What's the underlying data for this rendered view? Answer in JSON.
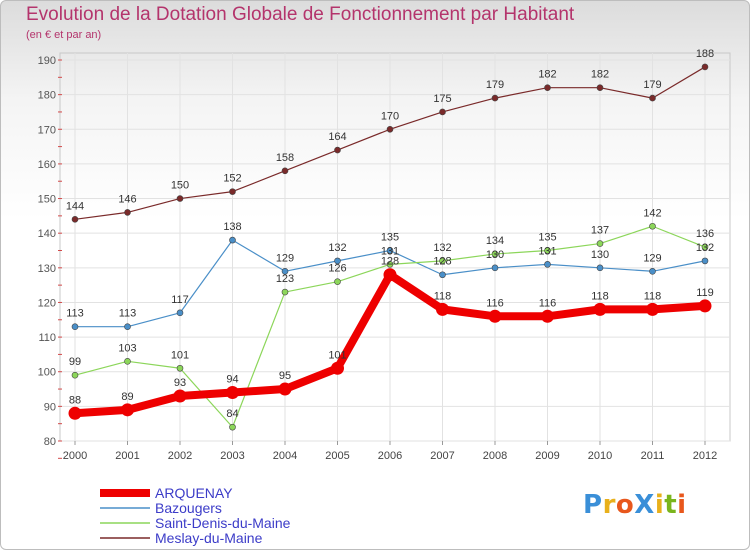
{
  "title": "Evolution de la Dotation Globale de Fonctionnement par Habitant",
  "subtitle": "(en € et par an)",
  "logo": {
    "text": "ProXiti",
    "letters": [
      "P",
      "r",
      "o",
      "X",
      "i",
      "t",
      "i"
    ],
    "colors": [
      "#3a8fd8",
      "#e8b01c",
      "#e8571c",
      "#3a8fd8",
      "#e8b01c",
      "#7ab51d",
      "#e8571c"
    ]
  },
  "chart_data": {
    "type": "line",
    "x": [
      "2000",
      "2001",
      "2002",
      "2003",
      "2004",
      "2005",
      "2006",
      "2007",
      "2008",
      "2009",
      "2010",
      "2011",
      "2012"
    ],
    "ylim": [
      80,
      190
    ],
    "yticks": [
      80,
      90,
      100,
      110,
      120,
      130,
      140,
      150,
      160,
      170,
      180,
      190
    ],
    "grid": true,
    "legend_position": "bottom-left",
    "series": [
      {
        "name": "Meslay-du-Maine",
        "color": "#7a2a2a",
        "width": 1.2,
        "marker": 3,
        "values": [
          144,
          146,
          150,
          152,
          158,
          164,
          170,
          175,
          179,
          182,
          182,
          179,
          188
        ],
        "labels": [
          "144",
          "146",
          "150",
          "152",
          "158",
          "164",
          "170",
          "175",
          "179",
          "182",
          "182",
          "179",
          "188"
        ]
      },
      {
        "name": "Bazougers",
        "color": "#4a8fc8",
        "width": 1.2,
        "marker": 3,
        "values": [
          113,
          113,
          117,
          138,
          129,
          132,
          135,
          128,
          130,
          131,
          130,
          129,
          132
        ],
        "labels": [
          "113",
          "113",
          "117",
          "138",
          "129",
          "132",
          "135",
          "128",
          "130",
          "131",
          "130",
          "129",
          "132"
        ]
      },
      {
        "name": "Saint-Denis-du-Maine",
        "color": "#8cd65a",
        "width": 1.2,
        "marker": 3,
        "values": [
          99,
          103,
          101,
          84,
          123,
          126,
          131,
          132,
          134,
          135,
          137,
          142,
          136
        ],
        "labels": [
          "99",
          "103",
          "101",
          "84",
          "123",
          "126",
          "131",
          "132",
          "134",
          "135",
          "137",
          "142",
          "136"
        ]
      },
      {
        "name": "ARQUENAY",
        "color": "#ee0000",
        "width": 8,
        "marker": 6.5,
        "values": [
          88,
          89,
          93,
          94,
          95,
          101,
          128,
          118,
          116,
          116,
          118,
          118,
          119
        ],
        "labels": [
          "88",
          "89",
          "93",
          "94",
          "95",
          "101",
          "128",
          "118",
          "116",
          "116",
          "118",
          "118",
          "119"
        ]
      }
    ],
    "legend_order": [
      "ARQUENAY",
      "Bazougers",
      "Saint-Denis-du-Maine",
      "Meslay-du-Maine"
    ]
  }
}
